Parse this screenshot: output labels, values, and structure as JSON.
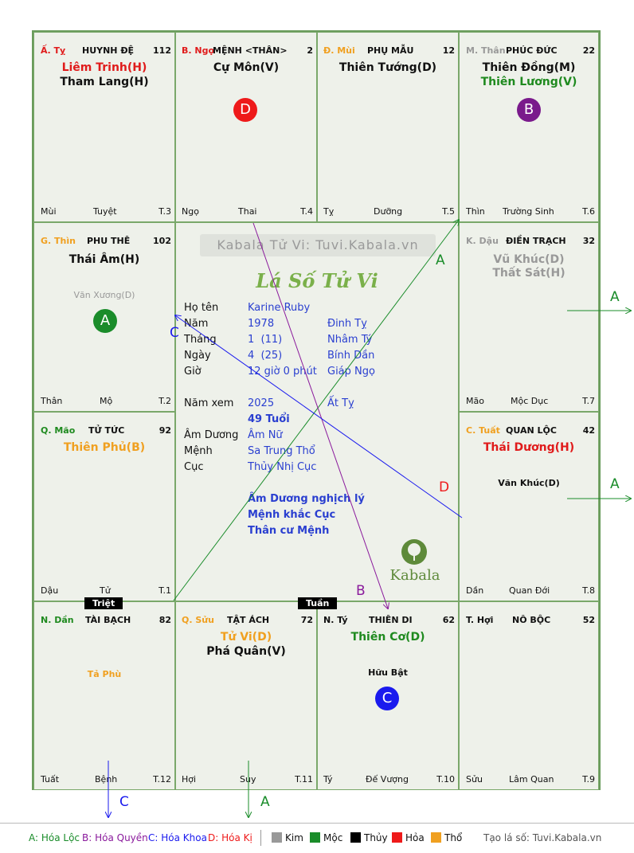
{
  "watermark": "Kabala Tử Vi: Tuvi.Kabala.vn",
  "logo_title": "Lá Số Tử Vi",
  "brand": "Kabala",
  "tags": {
    "triet": "Triệt",
    "tuan": "Tuần"
  },
  "palaces": {
    "ty": {
      "corner": "Ấ. Tỵ",
      "name": "HUYNH ĐỆ",
      "num": "112",
      "stars": [
        {
          "t": "Liêm Trinh(H)",
          "c": "#e01b1b"
        },
        {
          "t": "Tham Lang(H)",
          "c": "#111111"
        }
      ],
      "minor": [],
      "foot_left": "Mùi",
      "foot_mid": "Tuyệt",
      "foot_right": "T.3"
    },
    "ngo": {
      "corner": "B. Ngọ",
      "name": "MỆNH <THÂN>",
      "num": "2",
      "stars": [
        {
          "t": "Cự Môn(V)",
          "c": "#111111"
        }
      ],
      "minor": [],
      "badge": "D",
      "foot_left": "Ngọ",
      "foot_mid": "Thai",
      "foot_right": "T.4"
    },
    "mui": {
      "corner": "Đ. Mùi",
      "name": "PHỤ MẪU",
      "num": "12",
      "stars": [
        {
          "t": "Thiên Tướng(D)",
          "c": "#111111"
        }
      ],
      "minor": [],
      "foot_left": "Tỵ",
      "foot_mid": "Dưỡng",
      "foot_right": "T.5"
    },
    "than": {
      "corner": "M. Thân",
      "name": "PHÚC ĐỨC",
      "num": "22",
      "stars": [
        {
          "t": "Thiên Đồng(M)",
          "c": "#111111"
        },
        {
          "t": "Thiên Lương(V)",
          "c": "#1f8a1f"
        }
      ],
      "minor": [],
      "badge": "B",
      "foot_left": "Thìn",
      "foot_mid": "Trường Sinh",
      "foot_right": "T.6"
    },
    "thin": {
      "corner": "G. Thìn",
      "name": "PHU THÊ",
      "num": "102",
      "stars": [
        {
          "t": "Thái Âm(H)",
          "c": "#111111"
        }
      ],
      "minor": [
        {
          "t": "Văn Xương(D)",
          "c": "#999999"
        }
      ],
      "badge": "A",
      "foot_left": "Thân",
      "foot_mid": "Mộ",
      "foot_right": "T.2"
    },
    "dau": {
      "corner": "K. Dậu",
      "name": "ĐIỀN TRẠCH",
      "num": "32",
      "stars": [
        {
          "t": "Vũ Khúc(D)",
          "c": "#999999"
        },
        {
          "t": "Thất Sát(H)",
          "c": "#999999"
        }
      ],
      "minor": [],
      "foot_left": "Mão",
      "foot_mid": "Mộc Dục",
      "foot_right": "T.7"
    },
    "mao": {
      "corner": "Q. Mão",
      "name": "TỬ TỨC",
      "num": "92",
      "stars": [
        {
          "t": "Thiên Phủ(B)",
          "c": "#f0a020"
        }
      ],
      "minor": [],
      "foot_left": "Dậu",
      "foot_mid": "Tử",
      "foot_right": "T.1"
    },
    "tuat": {
      "corner": "C. Tuất",
      "name": "QUAN LỘC",
      "num": "42",
      "stars": [
        {
          "t": "Thái Dương(H)",
          "c": "#e01b1b"
        }
      ],
      "minor": [
        {
          "t": "Văn Khúc(D)",
          "c": "#111111"
        }
      ],
      "foot_left": "Dần",
      "foot_mid": "Quan Đới",
      "foot_right": "T.8"
    },
    "dan": {
      "corner": "N. Dần",
      "name": "TÀI BẠCH",
      "num": "82",
      "stars": [],
      "minor": [
        {
          "t": "Tả Phù",
          "c": "#f0a020"
        }
      ],
      "foot_left": "Tuất",
      "foot_mid": "Bệnh",
      "foot_right": "T.12"
    },
    "suu": {
      "corner": "Q. Sửu",
      "name": "TẬT ÁCH",
      "num": "72",
      "stars": [
        {
          "t": "Tử Vi(D)",
          "c": "#f0a020"
        },
        {
          "t": "Phá Quân(V)",
          "c": "#111111"
        }
      ],
      "minor": [],
      "foot_left": "Hợi",
      "foot_mid": "Suy",
      "foot_right": "T.11"
    },
    "ti": {
      "corner": "N. Tý",
      "name": "THIÊN DI",
      "num": "62",
      "stars": [
        {
          "t": "Thiên Cơ(D)",
          "c": "#1f8a1f"
        }
      ],
      "minor": [
        {
          "t": "Hữu Bật",
          "c": "#111111"
        }
      ],
      "badge": "C",
      "foot_left": "Tý",
      "foot_mid": "Đế Vượng",
      "foot_right": "T.10"
    },
    "hoi": {
      "corner": "T. Hợi",
      "name": "NÔ BỘC",
      "num": "52",
      "stars": [],
      "minor": [],
      "foot_left": "Sửu",
      "foot_mid": "Lâm Quan",
      "foot_right": "T.9"
    }
  },
  "info": {
    "ho_ten_l": "Họ tên",
    "ho_ten": "Karine Ruby",
    "nam_l": "Năm",
    "nam": "1978",
    "nam_can": "Đinh Tỵ",
    "thang_l": "Tháng",
    "thang": "1  (11)",
    "thang_can": "Nhâm Tý",
    "ngay_l": "Ngày",
    "ngay": "4  (25)",
    "ngay_can": "Bính Dần",
    "gio_l": "Giờ",
    "gio": "12 giờ 0 phút",
    "gio_can": "Giáp Ngọ",
    "namxem_l": "Năm xem",
    "namxem": "2025",
    "namxem_can": "Ất Tỵ",
    "tuoi": "49 Tuổi",
    "amduong_l": "Âm Dương",
    "amduong": "Âm Nữ",
    "menh_l": "Mệnh",
    "menh": "Sa Trung Thổ",
    "cuc_l": "Cục",
    "cuc": "Thủy Nhị Cục",
    "note1": "Âm Dương nghịch lý",
    "note2": "Mệnh khắc Cục",
    "note3": "Thân cư Mệnh"
  },
  "arrows": {
    "a": "A",
    "b": "B",
    "c": "C",
    "d": "D"
  },
  "legend": {
    "a": "A: Hóa Lộc",
    "b": "B: Hóa Quyền",
    "c": "C: Hóa Khoa",
    "d": "D: Hóa Kị",
    "kim": "Kim",
    "moc": "Mộc",
    "thuy": "Thủy",
    "hoa": "Hỏa",
    "tho": "Thổ",
    "site": "Tạo lá số: Tuvi.Kabala.vn"
  },
  "colors": {
    "badge_a": "#1a8c2a",
    "badge_b": "#7a1a8c",
    "badge_c": "#1a1aee",
    "badge_d": "#ee1a1a",
    "kim": "#999999",
    "moc": "#1a8c2a",
    "thuy": "#000000",
    "hoa": "#ee1a1a",
    "tho": "#f0a020"
  }
}
